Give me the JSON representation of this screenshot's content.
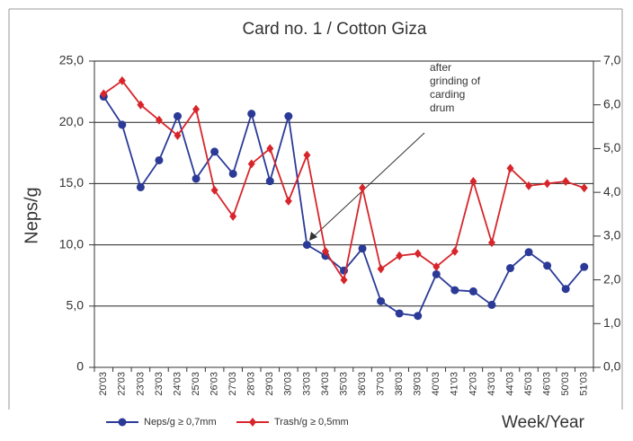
{
  "chart_data": {
    "type": "line",
    "title": "Card no. 1 / Cotton Giza",
    "y_label": "Neps/g",
    "x_label": "Week/Year",
    "annotation": [
      "after",
      "grinding of",
      "carding",
      "drum"
    ],
    "categories": [
      "20'03",
      "22'03",
      "23'03",
      "23'03",
      "24'03",
      "25'03",
      "26'03",
      "27'03",
      "28'03",
      "29'03",
      "30'03",
      "33'03",
      "34'03",
      "35'03",
      "36'03",
      "37'03",
      "38'03",
      "39'03",
      "40'03",
      "41'03",
      "42'03",
      "43'03",
      "44'03",
      "45'03",
      "46'03",
      "50'03",
      "51'03"
    ],
    "series": [
      {
        "name": "Neps/g ≥ 0,7mm",
        "color": "#2b3a97",
        "marker": "circle",
        "values": [
          22.1,
          19.8,
          14.7,
          16.9,
          20.5,
          15.4,
          17.6,
          15.8,
          20.7,
          15.2,
          20.5,
          10.0,
          9.1,
          7.9,
          9.7,
          5.4,
          4.4,
          4.2,
          7.6,
          6.3,
          6.2,
          5.1,
          8.1,
          9.4,
          8.3,
          6.4,
          8.2
        ]
      },
      {
        "name": "Trash/g ≥ 0,5mm",
        "color": "#d7252b",
        "marker": "diamond",
        "axis": "y2",
        "values": [
          6.25,
          6.55,
          6.0,
          5.65,
          5.3,
          5.9,
          4.05,
          3.45,
          4.65,
          5.0,
          3.8,
          4.85,
          2.65,
          2.0,
          4.1,
          2.25,
          2.55,
          2.6,
          2.3,
          2.65,
          4.25,
          2.85,
          4.55,
          4.15,
          4.2,
          4.25,
          4.1
        ]
      }
    ],
    "ylim": [
      0,
      25
    ],
    "yticks": [
      0,
      {
        "value": 5,
        "label": "5,0"
      },
      {
        "value": 10,
        "label": "10,0"
      },
      {
        "value": 15,
        "label": "15,0"
      },
      {
        "value": 20,
        "label": "20,0"
      },
      {
        "value": 25,
        "label": "25,0"
      }
    ],
    "y2lim": [
      0,
      7
    ],
    "y2ticks": [
      {
        "value": 0,
        "label": "0,0"
      },
      {
        "value": 1,
        "label": "1,0"
      },
      {
        "value": 2,
        "label": "2,0"
      },
      {
        "value": 3,
        "label": "3,0"
      },
      {
        "value": 4,
        "label": "4,0"
      },
      {
        "value": 5,
        "label": "5,0"
      },
      {
        "value": 6,
        "label": "6,0"
      },
      {
        "value": 7,
        "label": "7,0"
      }
    ],
    "grid": true
  }
}
